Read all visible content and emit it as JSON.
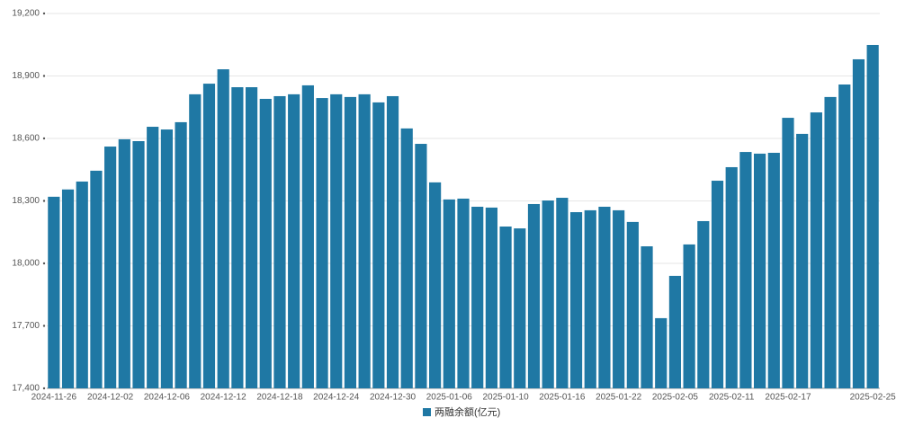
{
  "chart_data": {
    "type": "bar",
    "categories": [
      "2024-11-26",
      null,
      null,
      null,
      "2024-12-02",
      null,
      null,
      null,
      "2024-12-06",
      null,
      null,
      null,
      "2024-12-12",
      null,
      null,
      null,
      "2024-12-18",
      null,
      null,
      null,
      "2024-12-24",
      null,
      null,
      null,
      "2024-12-30",
      null,
      null,
      null,
      "2025-01-06",
      null,
      null,
      null,
      "2025-01-10",
      null,
      null,
      null,
      "2025-01-16",
      null,
      null,
      null,
      "2025-01-22",
      null,
      null,
      null,
      "2025-02-05",
      null,
      null,
      null,
      "2025-02-11",
      null,
      null,
      null,
      "2025-02-17",
      null,
      null,
      null,
      null,
      null,
      "2025-02-25"
    ],
    "series": [
      {
        "name": "两融余额(亿元)",
        "color": "#1f78a4",
        "values": [
          18320,
          18355,
          18393,
          18445,
          18561,
          18596,
          18587,
          18656,
          18643,
          18678,
          18812,
          18863,
          18932,
          18846,
          18846,
          18790,
          18803,
          18812,
          18855,
          18794,
          18812,
          18799,
          18812,
          18773,
          18803,
          18648,
          18574,
          18389,
          18307,
          18311,
          18272,
          18268,
          18177,
          18168,
          18285,
          18302,
          18315,
          18246,
          18255,
          18272,
          18255,
          18199,
          18082,
          17737,
          17940,
          18091,
          18203,
          18397,
          18462,
          18535,
          18527,
          18531,
          18699,
          18622,
          18725,
          18799,
          18859,
          18980,
          19049
        ]
      }
    ],
    "ylim": [
      17400,
      19200
    ],
    "yticks": [
      {
        "value": 17400,
        "label": "17,400"
      },
      {
        "value": 17700,
        "label": "17,700"
      },
      {
        "value": 18000,
        "label": "18,000"
      },
      {
        "value": 18300,
        "label": "18,300"
      },
      {
        "value": 18600,
        "label": "18,600"
      },
      {
        "value": 18900,
        "label": "18,900"
      },
      {
        "value": 19200,
        "label": "19,200"
      }
    ],
    "grid": true,
    "legend": "bottom"
  }
}
